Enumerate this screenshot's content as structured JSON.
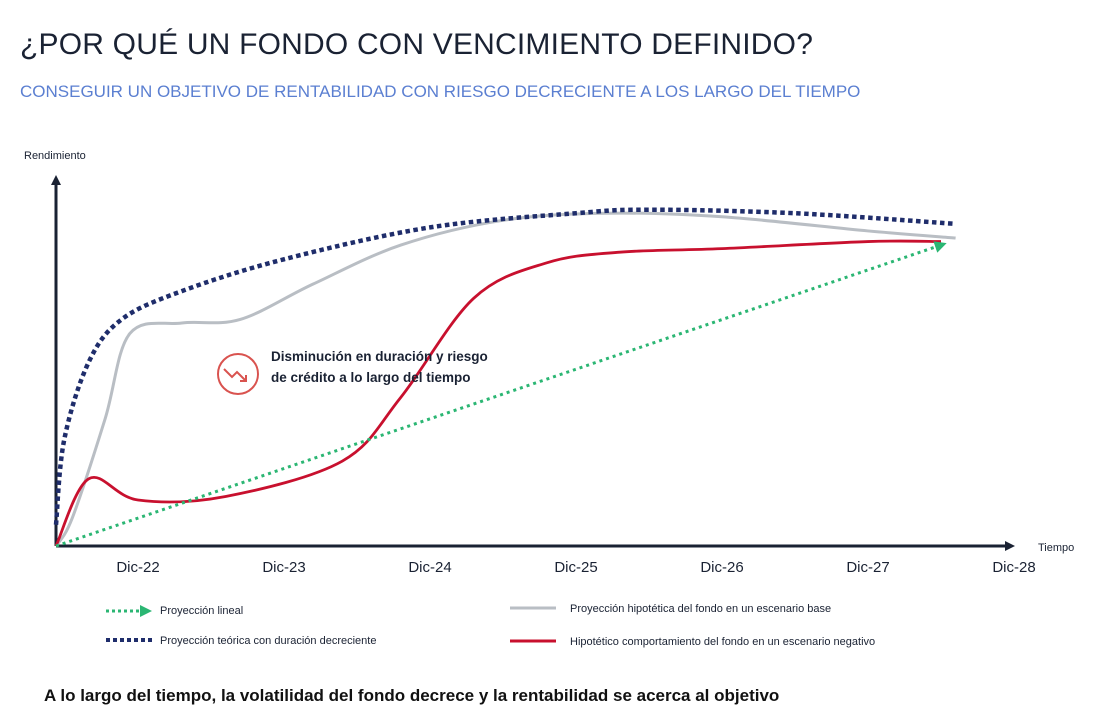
{
  "header": {
    "title": "¿POR QUÉ UN FONDO CON VENCIMIENTO DEFINIDO?",
    "subtitle": "CONSEGUIR UN OBJETIVO DE RENTABILIDAD CON RIESGO DECRECIENTE A LOS LARGO DEL TIEMPO"
  },
  "chart_data": {
    "type": "line",
    "title": "",
    "ylabel": "Rendimiento",
    "xlabel": "Tiempo",
    "categories": [
      "Dic-22",
      "Dic-23",
      "Dic-24",
      "Dic-25",
      "Dic-26",
      "Dic-27",
      "Dic-28"
    ],
    "xlim": [
      0,
      6.7
    ],
    "ylim": [
      0,
      100
    ],
    "grid": false,
    "legend_position": "bottom",
    "series": [
      {
        "name": "Proyección lineal",
        "style": "dotted-arrow",
        "color": "#2bb673",
        "x": [
          0,
          6.5
        ],
        "y": [
          0,
          85
        ]
      },
      {
        "name": "Proyección teórica con duración decreciente",
        "style": "dashed",
        "color": "#1f2d6b",
        "x": [
          0,
          0.1,
          0.4,
          0.8,
          1.3,
          2,
          3,
          4,
          4.5,
          5.5,
          6.6
        ],
        "y": [
          6,
          30,
          52,
          64,
          72,
          81,
          90,
          94,
          95,
          94,
          91
        ]
      },
      {
        "name": "Proyección hipotética del fondo en un escenario base",
        "style": "solid",
        "color": "#b9bec4",
        "x": [
          0,
          0.2,
          0.6,
          0.9,
          1.3,
          1.7,
          2.2,
          2.8,
          3.5,
          4.2,
          5,
          6.0,
          6.6
        ],
        "y": [
          0,
          8,
          36,
          60,
          63,
          64,
          74,
          85,
          92,
          94,
          93,
          89,
          87
        ]
      },
      {
        "name": "Hipotético comportamiento del fondo en un escenario negativo",
        "style": "solid",
        "color": "#c8102e",
        "x": [
          0,
          0.4,
          1.0,
          1.6,
          2.4,
          2.8,
          3.3,
          3.8,
          4.3,
          5,
          6,
          6.5
        ],
        "y": [
          0,
          19,
          13,
          14,
          24,
          42,
          70,
          80,
          83,
          84,
          86,
          86
        ]
      }
    ]
  },
  "annotation": {
    "text": "Disminución en duración y riesgo de crédito a lo largo del tiempo",
    "icon": "trend-down-icon",
    "color": "#d9534f"
  },
  "footer": {
    "text": "A lo largo del tiempo, la volatilidad del fondo decrece y la rentabilidad se acerca al objetivo"
  }
}
